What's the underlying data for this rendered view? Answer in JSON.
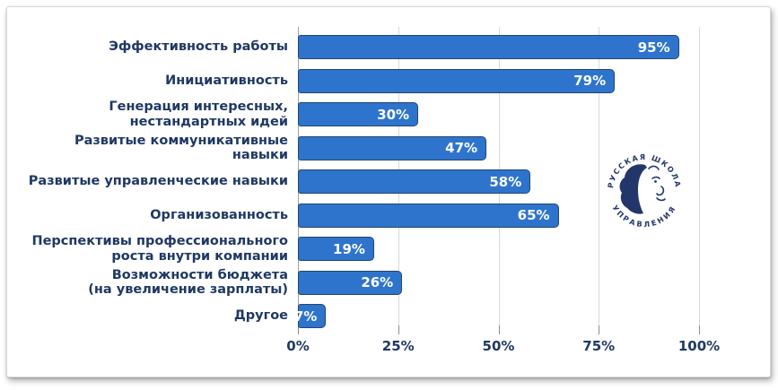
{
  "colors": {
    "bar": "#2e74cc",
    "bar-border": "#24466b",
    "label": "#1f3864",
    "grid": "#d9d9d9",
    "axis": "#9aa0a6",
    "logo": "#23366b"
  },
  "chart_data": {
    "type": "bar",
    "orientation": "horizontal",
    "categories": [
      "Эффективность работы",
      "Инициативность",
      "Генерация интересных,\nнестандартных идей",
      "Развитые коммуникативные\nнавыки",
      "Развитые управленческие навыки",
      "Организованность",
      "Перспективы профессионального\nроста внутри компании",
      "Возможности бюджета\n(на увеличение зарплаты)",
      "Другое"
    ],
    "values": [
      95,
      79,
      30,
      47,
      58,
      65,
      19,
      26,
      7
    ],
    "value_labels": [
      "95%",
      "79%",
      "30%",
      "47%",
      "58%",
      "65%",
      "19%",
      "26%",
      "7%"
    ],
    "x_ticks": [
      "0%",
      "25%",
      "50%",
      "75%",
      "100%"
    ],
    "xlim": [
      0,
      100
    ],
    "grid": "vertical gridlines at 0/25/50/75/100%",
    "xlabel": "",
    "ylabel": "",
    "title": ""
  },
  "logo": {
    "ring_text_top": "• РУССКАЯ ШКОЛА •",
    "ring_text_bottom": "УПРАВЛЕНИЯ"
  }
}
